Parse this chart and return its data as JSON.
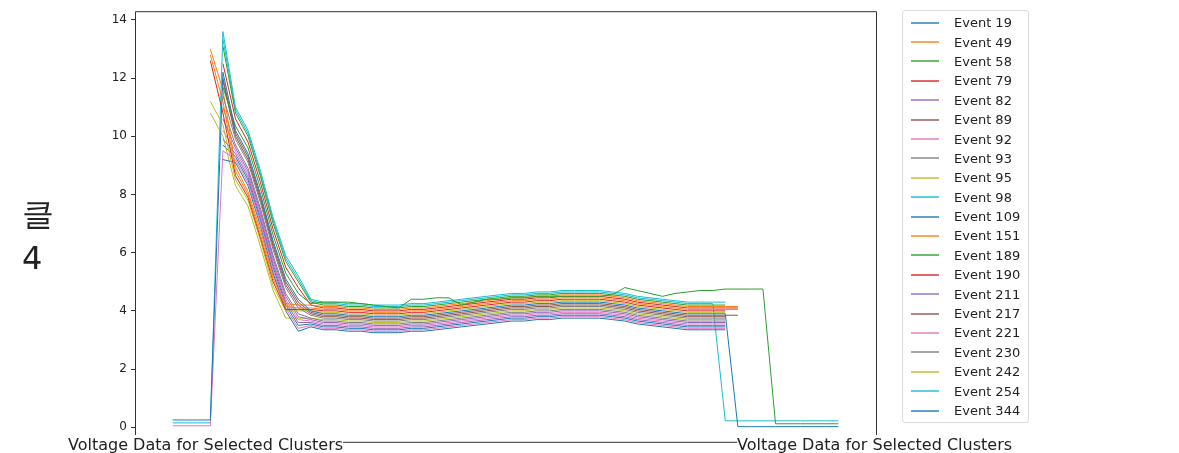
{
  "chart_data": {
    "type": "line",
    "categories": [
      null,
      null,
      null,
      null,
      null,
      null,
      null,
      null,
      null,
      null,
      null,
      null,
      null,
      null,
      null,
      null,
      null,
      null,
      null,
      null,
      null,
      null,
      null,
      null,
      null,
      null,
      null,
      null,
      null,
      null,
      null,
      null,
      null,
      null,
      null,
      null,
      null,
      null,
      null,
      null,
      null,
      null,
      null,
      null,
      null,
      null,
      null,
      null,
      null,
      null,
      null,
      null,
      null,
      null,
      null,
      null,
      null,
      null,
      null,
      null
    ],
    "ylim": [
      -0.5,
      14.3
    ],
    "yticks": [
      0,
      2,
      4,
      6,
      8,
      10,
      12,
      14
    ],
    "grid": false,
    "legend": "right",
    "marker": "none",
    "line_style": "solid",
    "tick_labels": "y",
    "annotations": [
      "클\n4",
      "Voltage Data for Selected Clusters",
      "Voltage Data for Selected Clusters"
    ],
    "series": [
      {
        "name": "Event 19",
        "color": "#1f77b4",
        "values": [
          null,
          null,
          null,
          0.25,
          0.25,
          0.25,
          0.25,
          12.2,
          10.2,
          9.4,
          8.0,
          6.4,
          5.1,
          4.4,
          4.0,
          3.9,
          3.9,
          3.85,
          3.85,
          3.8,
          3.8,
          3.8,
          3.85,
          3.85,
          3.9,
          3.95,
          4.0,
          4.05,
          4.1,
          4.15,
          4.2,
          4.2,
          4.25,
          4.25,
          4.3,
          4.3,
          4.3,
          4.3,
          4.25,
          4.2,
          4.1,
          4.05,
          4.0,
          3.95,
          3.9,
          3.9,
          3.9,
          3.9,
          0.02,
          0.02,
          0.02,
          0.02,
          0.02,
          0.02,
          0.02,
          0.02,
          0.02,
          null,
          null,
          null
        ]
      },
      {
        "name": "Event 49",
        "color": "#ff7f0e",
        "values": [
          null,
          null,
          null,
          null,
          null,
          null,
          12.8,
          11.2,
          8.8,
          8.0,
          6.6,
          5.1,
          4.15,
          4.1,
          4.1,
          4.05,
          4.05,
          4.0,
          4.0,
          3.95,
          3.95,
          3.95,
          4.0,
          4.0,
          4.05,
          4.1,
          4.15,
          4.2,
          4.25,
          4.3,
          4.35,
          4.35,
          4.4,
          4.4,
          4.45,
          4.45,
          4.45,
          4.45,
          4.4,
          4.35,
          4.25,
          4.2,
          4.15,
          4.1,
          4.05,
          4.05,
          4.05,
          4.05,
          4.05,
          null,
          null,
          null,
          null,
          null,
          null,
          null,
          null,
          null,
          null,
          null
        ]
      },
      {
        "name": "Event 58",
        "color": "#2ca02c",
        "values": [
          null,
          null,
          null,
          null,
          null,
          null,
          null,
          11.7,
          10.35,
          9.6,
          8.2,
          6.6,
          5.3,
          4.6,
          4.25,
          4.3,
          4.3,
          4.3,
          4.25,
          4.2,
          4.15,
          4.1,
          4.4,
          4.4,
          4.45,
          4.45,
          4.2,
          4.3,
          4.4,
          4.4,
          4.45,
          4.45,
          4.5,
          4.5,
          4.5,
          4.5,
          4.5,
          4.5,
          4.55,
          4.8,
          4.7,
          4.6,
          4.5,
          4.6,
          4.65,
          4.7,
          4.7,
          4.75,
          4.75,
          4.75,
          4.75,
          0.12,
          0.12,
          0.12,
          0.12,
          0.12,
          0.12,
          null,
          null,
          null
        ]
      },
      {
        "name": "Event 79",
        "color": "#d62728",
        "values": [
          null,
          null,
          null,
          null,
          null,
          null,
          12.6,
          10.8,
          8.65,
          7.9,
          6.5,
          5.0,
          4.05,
          4.05,
          4.05,
          4.0,
          4.0,
          3.95,
          3.95,
          3.9,
          3.9,
          3.9,
          3.95,
          3.95,
          4.0,
          4.05,
          4.1,
          4.15,
          4.2,
          4.25,
          4.3,
          4.3,
          4.35,
          4.35,
          4.4,
          4.4,
          4.4,
          4.4,
          4.35,
          4.3,
          4.2,
          4.15,
          4.1,
          4.05,
          4.0,
          4.0,
          4.0,
          4.0,
          null,
          null,
          null,
          null,
          null,
          null,
          null,
          null,
          null,
          null,
          null,
          null
        ]
      },
      {
        "name": "Event 82",
        "color": "#9467bd",
        "values": [
          null,
          null,
          null,
          null,
          null,
          null,
          null,
          9.9,
          9.4,
          8.6,
          7.2,
          5.6,
          4.3,
          3.6,
          3.6,
          3.5,
          3.5,
          3.45,
          3.45,
          3.4,
          3.4,
          3.4,
          3.45,
          3.45,
          3.5,
          3.55,
          3.6,
          3.65,
          3.7,
          3.75,
          3.8,
          3.8,
          3.85,
          3.85,
          3.9,
          3.9,
          3.9,
          3.9,
          3.85,
          3.8,
          3.7,
          3.65,
          3.6,
          3.55,
          3.5,
          3.5,
          3.5,
          3.5,
          null,
          null,
          null,
          null,
          null,
          null,
          null,
          null,
          null,
          null,
          null,
          null
        ]
      },
      {
        "name": "Event 89",
        "color": "#8c564b",
        "values": [
          null,
          null,
          null,
          null,
          null,
          null,
          null,
          12.0,
          10.1,
          9.3,
          7.9,
          6.3,
          5.0,
          4.3,
          3.95,
          3.85,
          3.85,
          3.8,
          3.8,
          3.75,
          3.75,
          3.75,
          3.8,
          3.8,
          3.85,
          3.9,
          3.95,
          4.0,
          4.05,
          4.1,
          4.15,
          4.15,
          4.2,
          4.2,
          4.25,
          4.25,
          4.25,
          4.25,
          4.2,
          4.15,
          4.05,
          4.0,
          3.95,
          3.9,
          3.85,
          3.85,
          3.85,
          3.85,
          3.85,
          null,
          null,
          null,
          null,
          null,
          null,
          null,
          null,
          null,
          null,
          null
        ]
      },
      {
        "name": "Event 92",
        "color": "#e377c2",
        "values": [
          null,
          null,
          null,
          0.05,
          0.05,
          0.05,
          0.05,
          9.5,
          9.2,
          8.4,
          7.0,
          5.4,
          4.1,
          3.4,
          3.5,
          3.4,
          3.4,
          3.35,
          3.35,
          3.3,
          3.3,
          3.3,
          3.35,
          3.35,
          3.4,
          3.45,
          3.5,
          3.55,
          3.6,
          3.65,
          3.7,
          3.7,
          3.75,
          3.75,
          3.8,
          3.8,
          3.8,
          3.8,
          3.75,
          3.7,
          3.6,
          3.55,
          3.5,
          3.45,
          3.4,
          3.4,
          3.4,
          3.4,
          null,
          null,
          null,
          null,
          null,
          null,
          null,
          null,
          null,
          null,
          null,
          null
        ]
      },
      {
        "name": "Event 93",
        "color": "#7f7f7f",
        "values": [
          null,
          null,
          null,
          null,
          null,
          null,
          null,
          11.4,
          9.9,
          9.1,
          7.7,
          6.1,
          4.8,
          4.1,
          3.85,
          3.75,
          3.75,
          3.7,
          3.7,
          3.65,
          3.65,
          3.65,
          3.7,
          3.7,
          3.75,
          3.8,
          3.85,
          3.9,
          3.95,
          4.0,
          4.05,
          4.05,
          4.1,
          4.1,
          4.15,
          4.15,
          4.15,
          4.15,
          4.1,
          4.05,
          3.95,
          3.9,
          3.85,
          3.8,
          3.75,
          3.75,
          3.75,
          3.75,
          null,
          null,
          null,
          null,
          null,
          null,
          null,
          null,
          null,
          null,
          null,
          null
        ]
      },
      {
        "name": "Event 95",
        "color": "#bcbd22",
        "values": [
          null,
          null,
          null,
          null,
          null,
          null,
          11.2,
          10.4,
          8.5,
          7.8,
          6.4,
          4.85,
          4.0,
          4.0,
          4.0,
          3.95,
          3.95,
          3.9,
          3.9,
          3.85,
          3.85,
          3.85,
          3.9,
          3.9,
          3.95,
          4.0,
          4.05,
          4.1,
          4.15,
          4.2,
          4.25,
          4.25,
          4.3,
          4.3,
          4.35,
          4.35,
          4.35,
          4.35,
          4.3,
          4.25,
          4.15,
          4.1,
          4.05,
          4.0,
          3.95,
          3.95,
          3.95,
          3.95,
          null,
          null,
          null,
          null,
          null,
          null,
          null,
          null,
          null,
          null,
          null,
          null
        ]
      },
      {
        "name": "Event 98",
        "color": "#17becf",
        "values": [
          null,
          null,
          null,
          0.15,
          0.15,
          0.15,
          0.15,
          13.6,
          11.0,
          10.2,
          8.8,
          7.2,
          5.9,
          5.2,
          4.4,
          4.3,
          4.3,
          4.25,
          4.25,
          4.2,
          4.2,
          4.2,
          4.25,
          4.25,
          4.3,
          4.35,
          4.4,
          4.45,
          4.5,
          4.55,
          4.6,
          4.6,
          4.65,
          4.65,
          4.7,
          4.7,
          4.7,
          4.7,
          4.65,
          4.6,
          4.5,
          4.45,
          4.4,
          4.35,
          4.3,
          4.3,
          4.3,
          4.3,
          null,
          null,
          null,
          null,
          null,
          null,
          null,
          null,
          null,
          null,
          null,
          null
        ]
      },
      {
        "name": "Event 109",
        "color": "#1f77b4",
        "values": [
          null,
          null,
          null,
          null,
          null,
          null,
          null,
          9.2,
          9.1,
          8.3,
          6.9,
          5.3,
          4.0,
          3.3,
          3.45,
          3.35,
          3.35,
          3.3,
          3.3,
          3.25,
          3.25,
          3.25,
          3.3,
          3.3,
          3.35,
          3.4,
          3.45,
          3.5,
          3.55,
          3.6,
          3.65,
          3.65,
          3.7,
          3.7,
          3.75,
          3.75,
          3.75,
          3.75,
          3.7,
          3.65,
          3.55,
          3.5,
          3.45,
          3.4,
          3.35,
          3.35,
          3.35,
          3.35,
          null,
          null,
          null,
          null,
          null,
          null,
          null,
          null,
          null,
          null,
          null,
          null
        ]
      },
      {
        "name": "Event 151",
        "color": "#ff7f0e",
        "values": [
          null,
          null,
          null,
          null,
          null,
          null,
          13.0,
          11.6,
          8.95,
          8.1,
          6.75,
          5.2,
          4.25,
          4.2,
          4.2,
          4.15,
          4.15,
          4.1,
          4.1,
          4.05,
          4.05,
          4.05,
          4.1,
          4.1,
          4.15,
          4.2,
          4.25,
          4.3,
          4.35,
          4.4,
          4.45,
          4.45,
          4.5,
          4.5,
          4.55,
          4.55,
          4.55,
          4.55,
          4.5,
          4.45,
          4.35,
          4.3,
          4.25,
          4.2,
          4.15,
          4.15,
          4.15,
          4.15,
          4.15,
          null,
          null,
          null,
          null,
          null,
          null,
          null,
          null,
          null,
          null,
          null
        ]
      },
      {
        "name": "Event 189",
        "color": "#2ca02c",
        "values": [
          null,
          null,
          null,
          null,
          null,
          null,
          null,
          13.1,
          10.8,
          10.0,
          8.6,
          7.0,
          5.7,
          5.0,
          4.3,
          4.2,
          4.2,
          4.15,
          4.15,
          4.1,
          4.1,
          4.1,
          4.15,
          4.15,
          4.2,
          4.25,
          4.3,
          4.35,
          4.4,
          4.45,
          4.5,
          4.5,
          4.55,
          4.55,
          4.6,
          4.6,
          4.6,
          4.6,
          4.55,
          4.5,
          4.4,
          4.35,
          4.3,
          4.25,
          4.2,
          4.2,
          4.2,
          4.2,
          null,
          null,
          null,
          null,
          null,
          null,
          null,
          null,
          null,
          null,
          null,
          null
        ]
      },
      {
        "name": "Event 190",
        "color": "#d62728",
        "values": [
          null,
          null,
          null,
          null,
          null,
          null,
          null,
          12.5,
          10.6,
          9.8,
          8.4,
          6.8,
          5.5,
          4.8,
          4.2,
          4.1,
          4.1,
          4.05,
          4.05,
          4.0,
          4.0,
          4.0,
          4.05,
          4.05,
          4.1,
          4.15,
          4.2,
          4.25,
          4.3,
          4.35,
          4.4,
          4.4,
          4.45,
          4.45,
          4.5,
          4.5,
          4.5,
          4.5,
          4.45,
          4.4,
          4.3,
          4.25,
          4.2,
          4.15,
          4.1,
          4.1,
          4.1,
          4.1,
          4.1,
          null,
          null,
          null,
          null,
          null,
          null,
          null,
          null,
          null,
          null,
          null
        ]
      },
      {
        "name": "Event 211",
        "color": "#9467bd",
        "values": [
          null,
          null,
          null,
          null,
          null,
          null,
          null,
          10.6,
          9.6,
          8.8,
          7.4,
          5.8,
          4.5,
          3.8,
          3.7,
          3.6,
          3.6,
          3.55,
          3.55,
          3.5,
          3.5,
          3.5,
          3.55,
          3.55,
          3.6,
          3.65,
          3.7,
          3.75,
          3.8,
          3.85,
          3.9,
          3.9,
          3.95,
          3.95,
          4.0,
          4.0,
          4.0,
          4.0,
          3.95,
          3.9,
          3.8,
          3.75,
          3.7,
          3.65,
          3.6,
          3.6,
          3.6,
          3.6,
          null,
          null,
          null,
          null,
          null,
          null,
          null,
          null,
          null,
          null,
          null,
          null
        ]
      },
      {
        "name": "Event 217",
        "color": "#8c564b",
        "values": [
          null,
          null,
          null,
          null,
          null,
          null,
          null,
          11.9,
          10.0,
          9.2,
          7.8,
          6.2,
          4.9,
          4.2,
          3.9,
          3.8,
          3.8,
          3.75,
          3.75,
          3.7,
          3.7,
          3.7,
          3.75,
          3.75,
          3.8,
          3.85,
          3.9,
          3.95,
          4.0,
          4.05,
          4.1,
          4.1,
          4.15,
          4.15,
          4.2,
          4.2,
          4.2,
          4.2,
          4.15,
          4.1,
          4.0,
          3.95,
          3.9,
          3.85,
          3.8,
          3.8,
          3.8,
          3.8,
          null,
          null,
          null,
          null,
          null,
          null,
          null,
          null,
          null,
          null,
          null,
          null
        ]
      },
      {
        "name": "Event 221",
        "color": "#e377c2",
        "values": [
          null,
          null,
          null,
          null,
          null,
          null,
          null,
          10.2,
          9.5,
          8.7,
          7.3,
          5.7,
          4.4,
          3.7,
          3.65,
          3.55,
          3.55,
          3.5,
          3.5,
          3.45,
          3.45,
          3.45,
          3.5,
          3.5,
          3.55,
          3.6,
          3.65,
          3.7,
          3.75,
          3.8,
          3.85,
          3.85,
          3.9,
          3.9,
          3.95,
          3.95,
          3.95,
          3.95,
          3.9,
          3.85,
          3.75,
          3.7,
          3.65,
          3.6,
          3.55,
          3.55,
          3.55,
          3.55,
          null,
          null,
          null,
          null,
          null,
          null,
          null,
          null,
          null,
          null,
          null,
          null
        ]
      },
      {
        "name": "Event 230",
        "color": "#7f7f7f",
        "values": [
          null,
          null,
          null,
          null,
          null,
          null,
          null,
          11.0,
          9.7,
          8.9,
          7.5,
          5.9,
          4.6,
          3.9,
          3.75,
          3.65,
          3.65,
          3.6,
          3.6,
          3.55,
          3.55,
          3.55,
          3.6,
          3.6,
          3.65,
          3.7,
          3.75,
          3.8,
          3.85,
          3.9,
          3.95,
          3.95,
          4.0,
          4.0,
          4.05,
          4.05,
          4.05,
          4.05,
          4.0,
          3.95,
          3.85,
          3.8,
          3.75,
          3.7,
          3.65,
          3.65,
          3.65,
          3.65,
          null,
          null,
          null,
          null,
          null,
          null,
          null,
          null,
          null,
          null,
          null,
          null
        ]
      },
      {
        "name": "Event 242",
        "color": "#bcbd22",
        "values": [
          null,
          null,
          null,
          null,
          null,
          null,
          10.8,
          10.0,
          8.3,
          7.6,
          6.2,
          4.7,
          3.75,
          3.75,
          3.75,
          3.7,
          3.7,
          3.65,
          3.65,
          3.6,
          3.6,
          3.6,
          3.65,
          3.65,
          3.7,
          3.75,
          3.8,
          3.85,
          3.9,
          3.95,
          4.0,
          4.0,
          4.05,
          4.05,
          4.1,
          4.1,
          4.1,
          4.1,
          4.05,
          4.0,
          3.9,
          3.85,
          3.8,
          3.75,
          3.7,
          3.7,
          3.7,
          3.7,
          null,
          null,
          null,
          null,
          null,
          null,
          null,
          null,
          null,
          null,
          null,
          null
        ]
      },
      {
        "name": "Event 254",
        "color": "#17becf",
        "values": [
          null,
          null,
          null,
          null,
          null,
          null,
          null,
          13.35,
          10.9,
          10.1,
          8.7,
          7.1,
          5.8,
          5.1,
          4.35,
          4.25,
          4.25,
          4.2,
          4.2,
          4.15,
          4.15,
          4.15,
          4.2,
          4.2,
          4.25,
          4.3,
          4.35,
          4.4,
          4.45,
          4.5,
          4.55,
          4.55,
          4.6,
          4.6,
          4.65,
          4.65,
          4.65,
          4.65,
          4.6,
          4.55,
          4.45,
          4.4,
          4.35,
          4.3,
          4.25,
          4.25,
          4.25,
          0.22,
          0.22,
          0.22,
          0.22,
          0.22,
          0.22,
          0.22,
          0.22,
          0.22,
          0.22,
          null,
          null,
          null
        ]
      },
      {
        "name": "Event 344",
        "color": "#1f77b4",
        "values": [
          null,
          null,
          null,
          null,
          null,
          null,
          null,
          9.7,
          9.3,
          8.5,
          7.1,
          5.5,
          4.2,
          3.5,
          3.55,
          3.45,
          3.45,
          3.4,
          3.4,
          3.35,
          3.35,
          3.35,
          3.4,
          3.4,
          3.45,
          3.5,
          3.55,
          3.6,
          3.65,
          3.7,
          3.75,
          3.75,
          3.8,
          3.8,
          3.85,
          3.85,
          3.85,
          3.85,
          3.8,
          3.75,
          3.65,
          3.6,
          3.55,
          3.5,
          3.45,
          3.45,
          3.45,
          3.45,
          null,
          null,
          null,
          null,
          null,
          null,
          null,
          null,
          null,
          null,
          null,
          null
        ]
      }
    ]
  }
}
